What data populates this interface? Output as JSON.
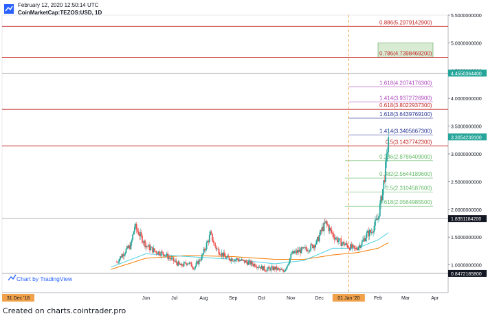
{
  "header": {
    "date_line": "February 12, 2020 12:50:14 UTC",
    "symbol_line": "CoinMarketCap:TEZOS:USD, 1D"
  },
  "footer": {
    "text": "Created on charts.cointrader.pro"
  },
  "watermark": {
    "text": "Chart by TradingView"
  },
  "colors": {
    "up": "#26a69a",
    "down": "#ef5350",
    "ema_orange": "#f57c00",
    "ema_cyan": "#4dd0e1",
    "fib_red": "#c62828",
    "fib_green": "#66bb6a",
    "fib_blue": "#283593",
    "fib_purple": "#ab47bc",
    "current_price": "#26a69a",
    "dark_tag": "#131722",
    "date_highlight": "#f0a14a"
  },
  "chart_data": {
    "type": "candlestick",
    "symbol": "CoinMarketCap:TEZOS:USD",
    "interval": "1D",
    "x_start": "2018-12-31",
    "x_end": "2020-04-15",
    "y_range": [
      0.5,
      5.5
    ],
    "y_ticks": [
      "5.5000000000",
      "5.0000000000",
      "4.5000000000",
      "4.0000000000",
      "3.5000000000",
      "3.0000000000",
      "2.5000000000",
      "2.0000000000",
      "1.5000000000",
      "1.0000000000"
    ],
    "x_ticks": [
      {
        "label": "31 Dec '18",
        "date": "2018-12-31",
        "highlight": true
      },
      {
        "label": "Jun",
        "date": "2019-06-01"
      },
      {
        "label": "Jul",
        "date": "2019-07-01"
      },
      {
        "label": "Aug",
        "date": "2019-08-01"
      },
      {
        "label": "Sep",
        "date": "2019-09-01"
      },
      {
        "label": "Oct",
        "date": "2019-10-01"
      },
      {
        "label": "Nov",
        "date": "2019-11-01"
      },
      {
        "label": "Dec",
        "date": "2019-12-01"
      },
      {
        "label": "01 Jan '20",
        "date": "2020-01-01",
        "highlight": true
      },
      {
        "label": "Feb",
        "date": "2020-02-01"
      },
      {
        "label": "Mar",
        "date": "2020-03-01"
      },
      {
        "label": "Apr",
        "date": "2020-04-01"
      }
    ],
    "price_points": [
      {
        "date": "2019-05-01",
        "close": 1.05
      },
      {
        "date": "2019-05-10",
        "close": 1.25
      },
      {
        "date": "2019-05-16",
        "close": 1.35
      },
      {
        "date": "2019-05-20",
        "close": 1.7
      },
      {
        "date": "2019-05-25",
        "close": 1.55
      },
      {
        "date": "2019-06-01",
        "close": 1.35
      },
      {
        "date": "2019-06-10",
        "close": 1.25
      },
      {
        "date": "2019-06-20",
        "close": 1.2
      },
      {
        "date": "2019-06-28",
        "close": 1.1
      },
      {
        "date": "2019-07-08",
        "close": 0.98
      },
      {
        "date": "2019-07-15",
        "close": 1.05
      },
      {
        "date": "2019-07-22",
        "close": 0.95
      },
      {
        "date": "2019-07-30",
        "close": 1.15
      },
      {
        "date": "2019-08-08",
        "close": 1.55
      },
      {
        "date": "2019-08-14",
        "close": 1.3
      },
      {
        "date": "2019-08-25",
        "close": 1.12
      },
      {
        "date": "2019-09-05",
        "close": 1.1
      },
      {
        "date": "2019-09-15",
        "close": 1.05
      },
      {
        "date": "2019-09-25",
        "close": 1.0
      },
      {
        "date": "2019-10-05",
        "close": 0.92
      },
      {
        "date": "2019-10-15",
        "close": 0.94
      },
      {
        "date": "2019-10-24",
        "close": 0.88
      },
      {
        "date": "2019-10-28",
        "close": 1.0
      },
      {
        "date": "2019-11-02",
        "close": 1.2
      },
      {
        "date": "2019-11-10",
        "close": 1.25
      },
      {
        "date": "2019-11-20",
        "close": 1.3
      },
      {
        "date": "2019-11-28",
        "close": 1.4
      },
      {
        "date": "2019-12-04",
        "close": 1.65
      },
      {
        "date": "2019-12-08",
        "close": 1.75
      },
      {
        "date": "2019-12-15",
        "close": 1.55
      },
      {
        "date": "2019-12-22",
        "close": 1.42
      },
      {
        "date": "2019-12-30",
        "close": 1.35
      },
      {
        "date": "2020-01-08",
        "close": 1.28
      },
      {
        "date": "2020-01-15",
        "close": 1.4
      },
      {
        "date": "2020-01-20",
        "close": 1.55
      },
      {
        "date": "2020-01-25",
        "close": 1.6
      },
      {
        "date": "2020-02-01",
        "close": 1.85
      },
      {
        "date": "2020-02-05",
        "close": 2.25
      },
      {
        "date": "2020-02-08",
        "close": 2.6
      },
      {
        "date": "2020-02-10",
        "close": 2.9
      },
      {
        "date": "2020-02-12",
        "close": 3.30542391
      }
    ],
    "moving_averages": [
      {
        "color_key": "ema_orange",
        "points": [
          {
            "date": "2019-04-25",
            "value": 0.92
          },
          {
            "date": "2019-06-01",
            "value": 1.12
          },
          {
            "date": "2019-07-15",
            "value": 1.17
          },
          {
            "date": "2019-09-01",
            "value": 1.15
          },
          {
            "date": "2019-10-15",
            "value": 1.1
          },
          {
            "date": "2019-11-15",
            "value": 1.1
          },
          {
            "date": "2019-12-15",
            "value": 1.18
          },
          {
            "date": "2020-01-10",
            "value": 1.22
          },
          {
            "date": "2020-02-01",
            "value": 1.3
          },
          {
            "date": "2020-02-12",
            "value": 1.4
          }
        ]
      },
      {
        "color_key": "ema_cyan",
        "points": [
          {
            "date": "2019-04-25",
            "value": 0.96
          },
          {
            "date": "2019-06-01",
            "value": 1.2
          },
          {
            "date": "2019-07-15",
            "value": 1.15
          },
          {
            "date": "2019-09-01",
            "value": 1.1
          },
          {
            "date": "2019-10-15",
            "value": 1.02
          },
          {
            "date": "2019-11-15",
            "value": 1.08
          },
          {
            "date": "2019-12-15",
            "value": 1.3
          },
          {
            "date": "2020-01-10",
            "value": 1.3
          },
          {
            "date": "2020-02-01",
            "value": 1.45
          },
          {
            "date": "2020-02-12",
            "value": 1.58
          }
        ]
      }
    ],
    "horizontal_levels": [
      {
        "label": "0.886(5.2979142900)",
        "value": 5.29791429,
        "color_key": "fib_red",
        "line": "full"
      },
      {
        "label": "0.786(4.7398469200)",
        "value": 4.73984692,
        "color_key": "fib_red",
        "line": "full"
      },
      {
        "label": "1.618(4.2074176300)",
        "value": 4.20741763,
        "color_key": "fib_purple",
        "line": "segment"
      },
      {
        "label": "1.414(3.9372726900)",
        "value": 3.93727269,
        "color_key": "fib_purple",
        "line": "segment"
      },
      {
        "label": "0.618(3.8022937300)",
        "value": 3.80229373,
        "color_key": "fib_red",
        "line": "full"
      },
      {
        "label": "1.618(3.6439769100)",
        "value": 3.64397691,
        "color_key": "fib_blue",
        "line": "segment"
      },
      {
        "label": "1.414(3.3405667300)",
        "value": 3.34056673,
        "color_key": "fib_blue",
        "line": "segment"
      },
      {
        "label": "0.5(3.1437742300)",
        "value": 3.14377423,
        "color_key": "fib_red",
        "line": "full"
      },
      {
        "label": "0.236(2.8786409000)",
        "value": 2.8786409,
        "color_key": "fib_green",
        "line": "segment"
      },
      {
        "label": "0.382(2.5644189600)",
        "value": 2.56441896,
        "color_key": "fib_green",
        "line": "segment"
      },
      {
        "label": "0.5(2.3104587600)",
        "value": 2.31045876,
        "color_key": "fib_green",
        "line": "segment"
      },
      {
        "label": "0.618(2.0564985500)",
        "value": 2.05649855,
        "color_key": "fib_green",
        "line": "segment"
      }
    ],
    "price_tags": [
      {
        "value": 4.45503644,
        "text": "4.4550364400",
        "color_key": "current_price"
      },
      {
        "value": 3.30542391,
        "text": "3.3054239100",
        "color_key": "current_price"
      },
      {
        "value": 1.83511842,
        "text": "1.8351184200",
        "color_key": "dark_tag"
      },
      {
        "value": 0.84721858,
        "text": "0.8472185800",
        "color_key": "dark_tag"
      }
    ],
    "gray_lines": [
      {
        "value": 4.45503644
      },
      {
        "value": 1.83511842
      },
      {
        "value": 0.84721858
      }
    ],
    "target_box": {
      "date_from": "2020-02-01",
      "date_to": "2020-03-30",
      "value_low": 4.74,
      "value_high": 5.0
    },
    "vertical_marker": {
      "date": "2020-01-01"
    }
  }
}
